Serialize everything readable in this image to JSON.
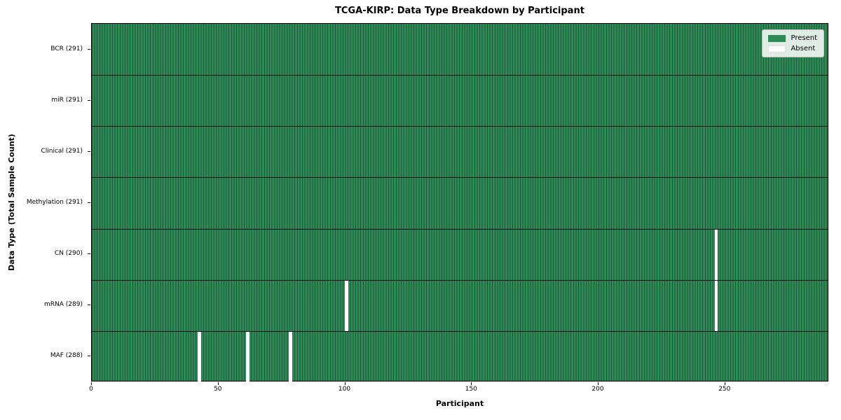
{
  "chart_data": {
    "type": "heatmap",
    "title": "TCGA-KIRP: Data Type Breakdown by Participant",
    "xlabel": "Participant",
    "ylabel": "Data Type (Total Sample Count)",
    "x_ticks": [
      0,
      50,
      100,
      150,
      200,
      250
    ],
    "xlim": [
      0,
      291
    ],
    "n_participants": 291,
    "grid": "per-cell vertical edges, dark horizontal row dividers",
    "legend_position": "upper right",
    "rows": [
      {
        "label": "BCR (291)",
        "data_type": "BCR",
        "present_count": 291,
        "absent_participants": []
      },
      {
        "label": "miR (291)",
        "data_type": "miR",
        "present_count": 291,
        "absent_participants": []
      },
      {
        "label": "Clinical (291)",
        "data_type": "Clinical",
        "present_count": 291,
        "absent_participants": []
      },
      {
        "label": "Methylation (291)",
        "data_type": "Methylation",
        "present_count": 291,
        "absent_participants": []
      },
      {
        "label": "CN (290)",
        "data_type": "CN",
        "present_count": 290,
        "absent_participants": [
          246
        ]
      },
      {
        "label": "mRNA (289)",
        "data_type": "mRNA",
        "present_count": 289,
        "absent_participants": [
          100,
          246
        ]
      },
      {
        "label": "MAF (288)",
        "data_type": "MAF",
        "present_count": 288,
        "absent_participants": [
          42,
          61,
          78
        ]
      }
    ],
    "legend": [
      {
        "label": "Present",
        "color": "#2e8b57"
      },
      {
        "label": "Absent",
        "color": "#ffffff"
      }
    ],
    "colors": {
      "present": "#2e8b57",
      "absent": "#ffffff",
      "cell_edge": "#1d5737",
      "row_divider": "#111111",
      "plot_border": "#000000"
    }
  }
}
